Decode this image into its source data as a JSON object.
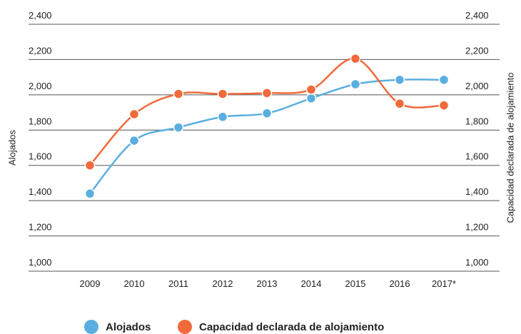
{
  "chart_data": {
    "type": "line",
    "y_label": "Alojados",
    "y2_label": "Capacidad declarada de alojamiento",
    "categories": [
      "2009",
      "2010",
      "2011",
      "2012",
      "2013",
      "2014",
      "2015",
      "2016",
      "2017*"
    ],
    "series": [
      {
        "name": "Alojados",
        "color": "#5aafe0",
        "values": [
          1440,
          1740,
          1815,
          1875,
          1895,
          1980,
          2060,
          2085,
          2085
        ]
      },
      {
        "name": "Capacidad declarada de alojamiento",
        "color": "#f26a3a",
        "axis": "y2",
        "values": [
          1600,
          1890,
          2005,
          2005,
          2010,
          2030,
          2205,
          1950,
          1940
        ]
      }
    ],
    "ylim": [
      1000,
      2400
    ],
    "yticks": [
      {
        "value": 1000,
        "label": "1,000"
      },
      {
        "value": 1200,
        "label": "1,200"
      },
      {
        "value": 1400,
        "label": "1,400"
      },
      {
        "value": 1600,
        "label": "1,600"
      },
      {
        "value": 1800,
        "label": "1,800"
      },
      {
        "value": 2000,
        "label": "2,000"
      },
      {
        "value": 2200,
        "label": "2,200"
      },
      {
        "value": 2400,
        "label": "2,400"
      }
    ],
    "y2lim": [
      1000,
      2400
    ],
    "y2ticks": [
      {
        "value": 1000,
        "label": "1,000"
      },
      {
        "value": 1200,
        "label": "1,200"
      },
      {
        "value": 1400,
        "label": "1,400"
      },
      {
        "value": 1600,
        "label": "1,600"
      },
      {
        "value": 1800,
        "label": "1,800"
      },
      {
        "value": 2000,
        "label": "2,000"
      },
      {
        "value": 2200,
        "label": "2,200"
      },
      {
        "value": 2400,
        "label": "2,400"
      }
    ],
    "grid": true,
    "legend": "bottom"
  }
}
